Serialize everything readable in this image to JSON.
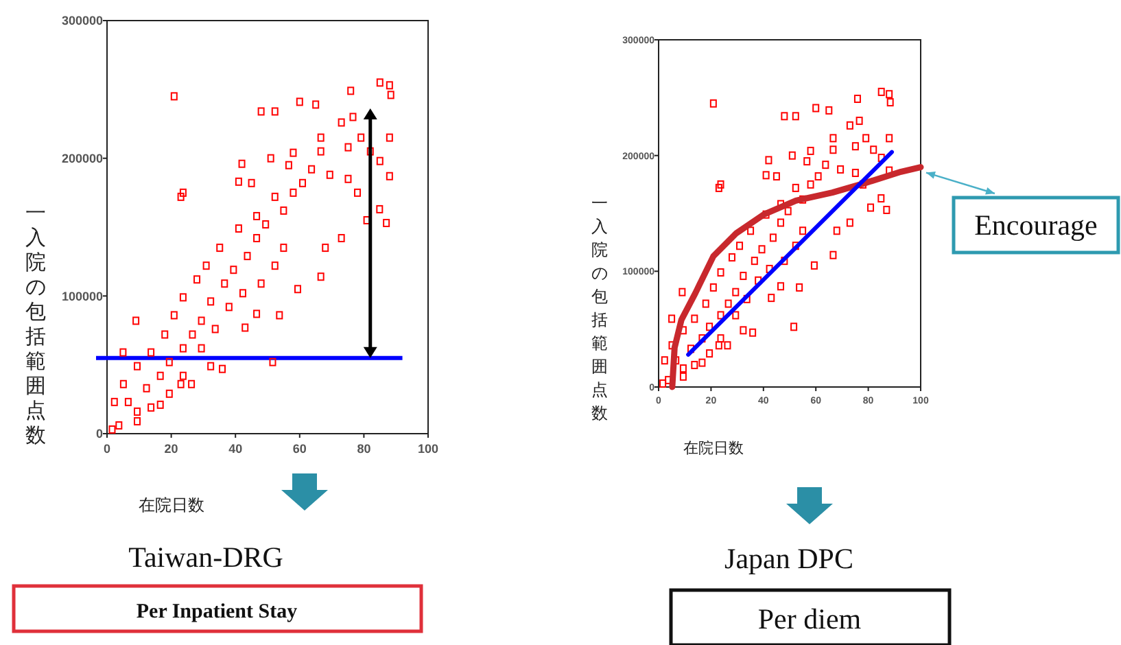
{
  "chart_data": [
    {
      "type": "scatter",
      "xlabel": "在院日数",
      "ylabel": "一入院の包括範囲点数",
      "xlim": [
        0,
        100
      ],
      "ylim": [
        0,
        300000
      ],
      "xticks": [
        0,
        20,
        40,
        60,
        80,
        100
      ],
      "yticks": [
        0,
        100000,
        200000,
        300000
      ],
      "series": [
        {
          "color": "#ff0000",
          "marker": "square",
          "x": [
            20.9,
            23.7,
            23,
            9,
            5,
            75.9,
            85,
            88,
            88.4,
            48,
            52.3,
            60,
            65,
            42,
            51,
            58,
            66.6,
            73,
            76.6,
            41,
            45,
            87,
            80.9,
            84.9,
            88,
            85,
            68,
            73,
            66.6,
            59.4,
            53.7,
            46.6,
            43,
            51.6,
            32.3,
            35.9,
            26.3,
            23,
            16.6,
            9.4,
            3.7,
            1.6,
            6.6,
            12.3,
            16.6,
            19.4,
            23.7,
            26.6,
            29.4,
            32.3,
            36.6,
            39.4,
            43.7,
            46.6,
            49.4,
            55,
            58,
            60.9,
            63.7,
            69.4,
            75.1,
            78,
            55,
            52.3,
            48,
            42.3,
            38,
            33.7,
            29.4,
            23.7,
            19.4,
            13.7,
            9.4,
            30.9,
            28,
            23.7,
            20.9,
            18,
            13.7,
            9.4,
            5.1,
            2.3,
            35.1,
            41,
            46.6,
            52.3,
            56.6,
            66.6,
            75.1,
            79.1,
            82,
            88
          ],
          "values": [
            245000,
            175000,
            172000,
            82000,
            59000,
            249000,
            255000,
            253000,
            246000,
            234000,
            234000,
            241000,
            239000,
            196000,
            200000,
            204000,
            215000,
            226000,
            230000,
            183000,
            182000,
            153000,
            155000,
            163000,
            187000,
            198000,
            135000,
            142000,
            114000,
            105000,
            86000,
            87000,
            77000,
            52000,
            49000,
            47000,
            36000,
            36000,
            21000,
            16000,
            6000,
            3000,
            23000,
            33000,
            42000,
            52000,
            62000,
            72000,
            82000,
            96000,
            109000,
            119000,
            129000,
            142000,
            152000,
            162000,
            175000,
            182000,
            192000,
            188000,
            185000,
            175000,
            135000,
            122000,
            109000,
            102000,
            92000,
            76000,
            62000,
            42000,
            29000,
            19000,
            9000,
            122000,
            112000,
            99000,
            86000,
            72000,
            59000,
            49000,
            36000,
            23000,
            135000,
            149000,
            158000,
            172000,
            195000,
            205000,
            208000,
            215000,
            205000,
            215000
          ]
        }
      ],
      "ref_lines": [
        {
          "axis": "y",
          "value": 55000,
          "color": "#0000ff"
        }
      ],
      "annotations": [
        "Taiwan-DRG",
        "Per Inpatient Stay"
      ]
    },
    {
      "type": "scatter",
      "xlabel": "在院日数",
      "ylabel": "一入院の包括範囲点数",
      "xlim": [
        0,
        100
      ],
      "ylim": [
        0,
        300000
      ],
      "xticks": [
        0,
        20,
        40,
        60,
        80,
        100
      ],
      "yticks": [
        0,
        100000,
        200000,
        300000
      ],
      "series": [
        {
          "color": "#ff0000",
          "marker": "square",
          "x": [
            20.9,
            23.7,
            23,
            9,
            5,
            75.9,
            85,
            88,
            88.4,
            48,
            52.3,
            60,
            65,
            42,
            51,
            58,
            66.6,
            73,
            76.6,
            41,
            45,
            87,
            80.9,
            84.9,
            88,
            85,
            68,
            73,
            66.6,
            59.4,
            53.7,
            46.6,
            43,
            51.6,
            32.3,
            35.9,
            26.3,
            23,
            16.6,
            9.4,
            3.7,
            1.6,
            6.6,
            12.3,
            16.6,
            19.4,
            23.7,
            26.6,
            29.4,
            32.3,
            36.6,
            39.4,
            43.7,
            46.6,
            49.4,
            55,
            58,
            60.9,
            63.7,
            69.4,
            75.1,
            78,
            55,
            52.3,
            48,
            42.3,
            38,
            33.7,
            29.4,
            23.7,
            19.4,
            13.7,
            9.4,
            30.9,
            28,
            23.7,
            20.9,
            18,
            13.7,
            9.4,
            5.1,
            2.3,
            35.1,
            41,
            46.6,
            52.3,
            56.6,
            66.6,
            75.1,
            79.1,
            82,
            88
          ],
          "values": [
            245000,
            175000,
            172000,
            82000,
            59000,
            249000,
            255000,
            253000,
            246000,
            234000,
            234000,
            241000,
            239000,
            196000,
            200000,
            204000,
            215000,
            226000,
            230000,
            183000,
            182000,
            153000,
            155000,
            163000,
            187000,
            198000,
            135000,
            142000,
            114000,
            105000,
            86000,
            87000,
            77000,
            52000,
            49000,
            47000,
            36000,
            36000,
            21000,
            16000,
            6000,
            3000,
            23000,
            33000,
            42000,
            52000,
            62000,
            72000,
            82000,
            96000,
            109000,
            119000,
            129000,
            142000,
            152000,
            162000,
            175000,
            182000,
            192000,
            188000,
            185000,
            175000,
            135000,
            122000,
            109000,
            102000,
            92000,
            76000,
            62000,
            42000,
            29000,
            19000,
            9000,
            122000,
            112000,
            99000,
            86000,
            72000,
            59000,
            49000,
            36000,
            23000,
            135000,
            149000,
            158000,
            172000,
            195000,
            205000,
            208000,
            215000,
            205000,
            215000
          ]
        },
        {
          "type": "line",
          "color": "#c8282d",
          "x": [
            5.2,
            6.1,
            8.7,
            14,
            20.9,
            29.7,
            40.1,
            52.4,
            66.3,
            78.5,
            92.5,
            100
          ],
          "values": [
            0,
            34000,
            58000,
            81000,
            113000,
            133000,
            149000,
            161000,
            168000,
            176000,
            186000,
            190000
          ]
        },
        {
          "type": "line",
          "color": "#0000ff",
          "x": [
            11.3,
            89
          ],
          "values": [
            28000,
            203000
          ]
        }
      ],
      "annotations": [
        "Japan DPC",
        "Per diem",
        {
          "text": "Encourage",
          "x": 100,
          "y": 190000
        }
      ]
    }
  ]
}
